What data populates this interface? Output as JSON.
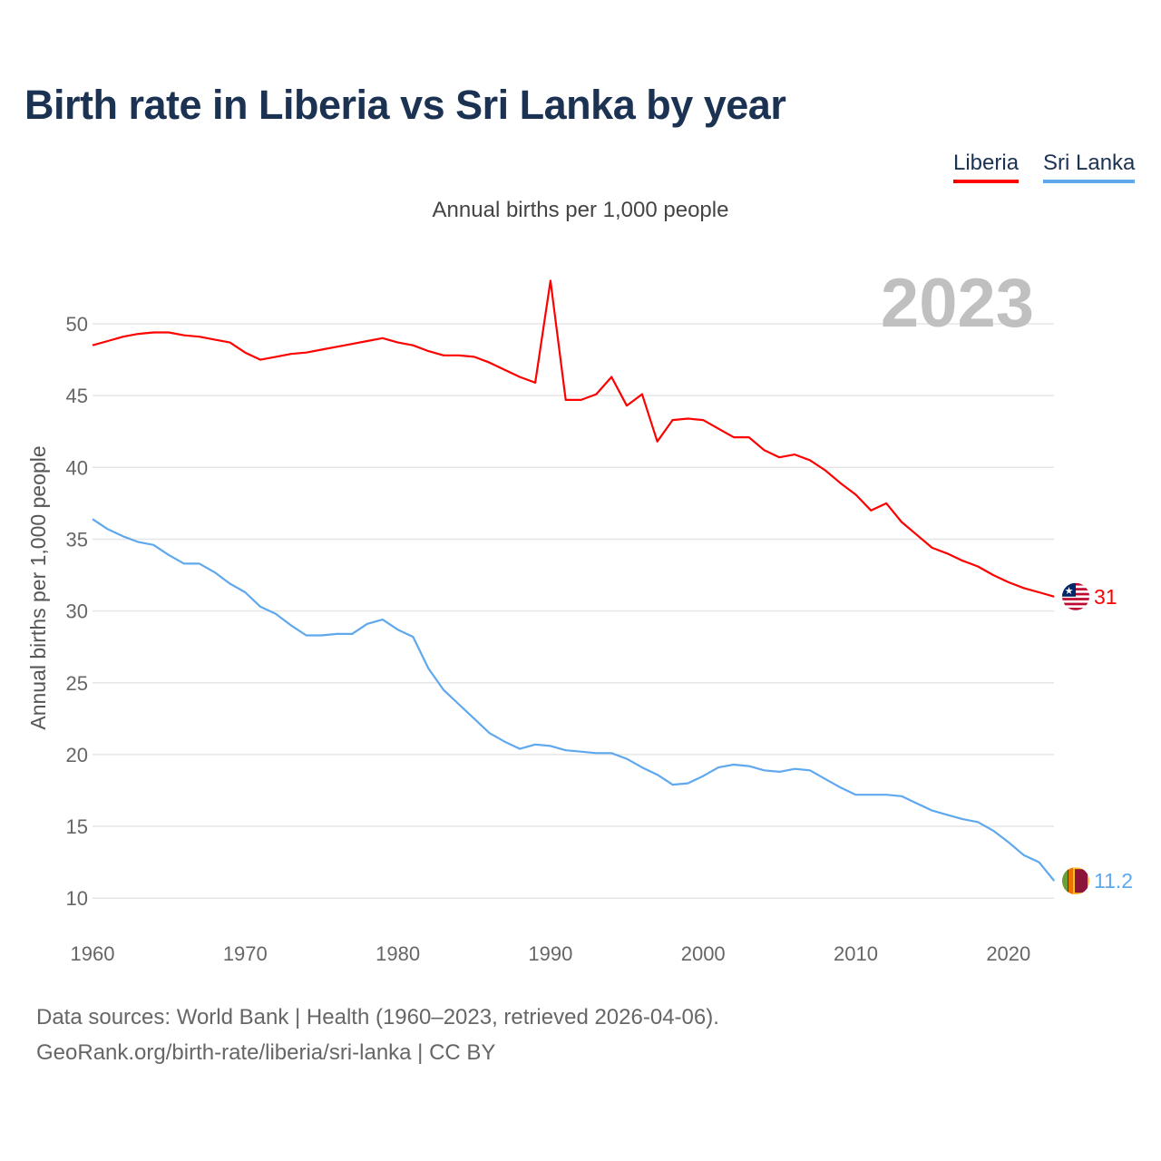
{
  "chart_data": {
    "type": "line",
    "title": "Birth rate in Liberia vs Sri Lanka by year",
    "subtitle": "Annual births per 1,000 people",
    "ylabel": "Annual births per 1,000 people",
    "xlabel": "",
    "year_overlay": "2023",
    "xlim": [
      1960,
      2023
    ],
    "ylim": [
      10,
      53
    ],
    "x_ticks": [
      1960,
      1970,
      1980,
      1990,
      2000,
      2010,
      2020
    ],
    "y_ticks": [
      10,
      15,
      20,
      25,
      30,
      35,
      40,
      45,
      50
    ],
    "grid": true,
    "legend_position": "top-right",
    "x": [
      1960,
      1961,
      1962,
      1963,
      1964,
      1965,
      1966,
      1967,
      1968,
      1969,
      1970,
      1971,
      1972,
      1973,
      1974,
      1975,
      1976,
      1977,
      1978,
      1979,
      1980,
      1981,
      1982,
      1983,
      1984,
      1985,
      1986,
      1987,
      1988,
      1989,
      1990,
      1991,
      1992,
      1993,
      1994,
      1995,
      1996,
      1997,
      1998,
      1999,
      2000,
      2001,
      2002,
      2003,
      2004,
      2005,
      2006,
      2007,
      2008,
      2009,
      2010,
      2011,
      2012,
      2013,
      2014,
      2015,
      2016,
      2017,
      2018,
      2019,
      2020,
      2021,
      2022,
      2023
    ],
    "series": [
      {
        "name": "Liberia",
        "color": "#ff0000",
        "end_label": "31",
        "values": [
          48.5,
          48.8,
          49.1,
          49.3,
          49.4,
          49.4,
          49.2,
          49.1,
          48.9,
          48.7,
          48.0,
          47.5,
          47.7,
          47.9,
          48.0,
          48.2,
          48.4,
          48.6,
          48.8,
          49.0,
          48.7,
          48.5,
          48.1,
          47.8,
          47.8,
          47.7,
          47.3,
          46.8,
          46.3,
          45.9,
          53.0,
          44.7,
          44.7,
          45.1,
          46.3,
          44.3,
          45.1,
          41.8,
          43.3,
          43.4,
          43.3,
          42.7,
          42.1,
          42.1,
          41.2,
          40.7,
          40.9,
          40.5,
          39.8,
          38.9,
          38.1,
          37.0,
          37.5,
          36.2,
          35.3,
          34.4,
          34.0,
          33.5,
          33.1,
          32.5,
          32.0,
          31.6,
          31.3,
          31.0
        ]
      },
      {
        "name": "Sri Lanka",
        "color": "#5fa8ee",
        "end_label": "11.2",
        "values": [
          36.4,
          35.7,
          35.2,
          34.8,
          34.6,
          33.9,
          33.3,
          33.3,
          32.7,
          31.9,
          31.3,
          30.3,
          29.8,
          29.0,
          28.3,
          28.3,
          28.4,
          28.4,
          29.1,
          29.4,
          28.7,
          28.2,
          26.0,
          24.5,
          23.5,
          22.5,
          21.5,
          20.9,
          20.4,
          20.7,
          20.6,
          20.3,
          20.2,
          20.1,
          20.1,
          19.7,
          19.1,
          18.6,
          17.9,
          18.0,
          18.5,
          19.1,
          19.3,
          19.2,
          18.9,
          18.8,
          19.0,
          18.9,
          18.3,
          17.7,
          17.2,
          17.2,
          17.2,
          17.1,
          16.6,
          16.1,
          15.8,
          15.5,
          15.3,
          14.7,
          13.9,
          13.0,
          12.5,
          11.2
        ]
      }
    ]
  },
  "footer": {
    "line1": "Data sources: World Bank | Health (1960–2023, retrieved 2026-04-06).",
    "line2": "GeoRank.org/birth-rate/liberia/sri-lanka | CC BY"
  }
}
